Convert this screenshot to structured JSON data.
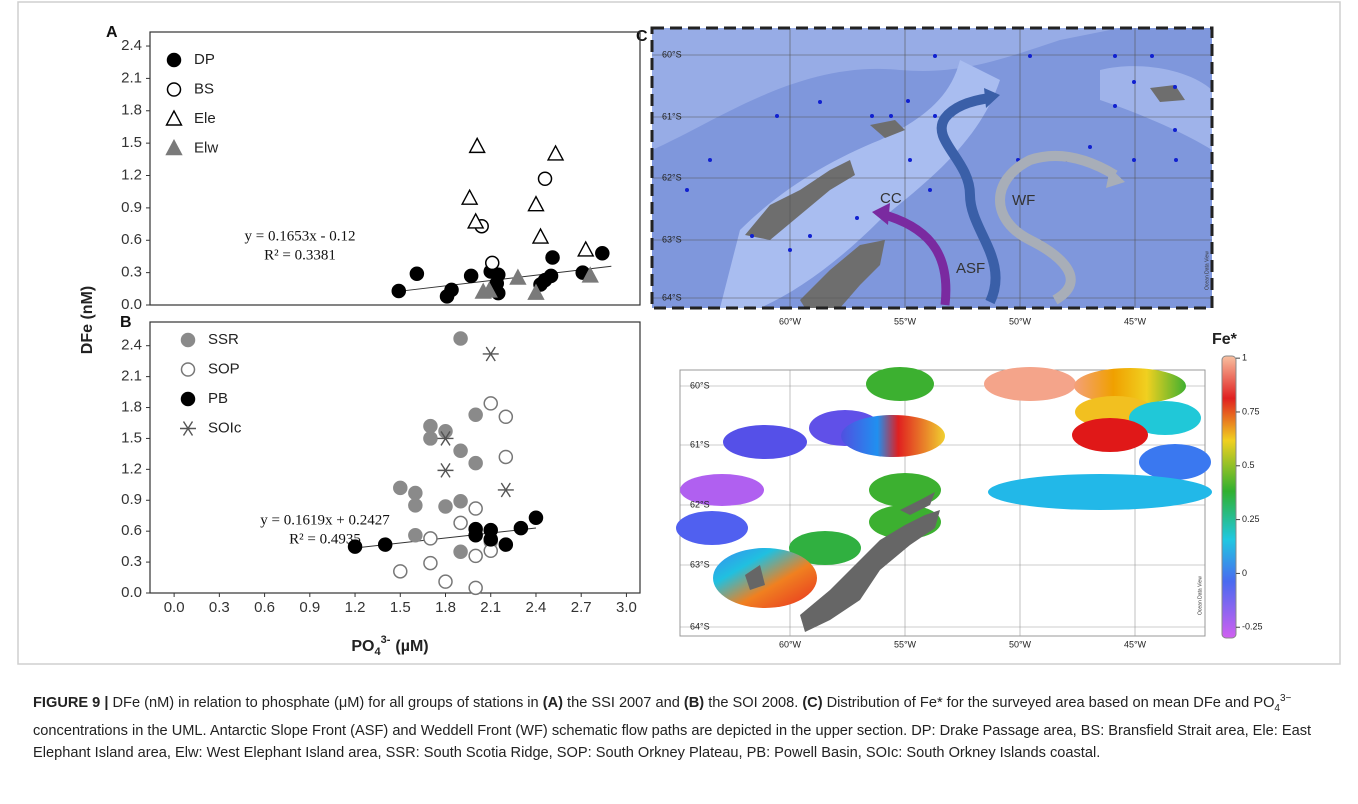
{
  "chart_data": [
    {
      "type": "scatter",
      "panel_label": "A",
      "ylabel": "DFe (nM)",
      "xlim": [
        -0.16,
        3.09
      ],
      "ylim": [
        0,
        2.53
      ],
      "yticks": [
        {
          "value": 0,
          "label": "0.0"
        },
        0.3,
        0.6,
        0.9,
        1.2,
        1.5,
        1.8,
        2.1,
        2.4
      ],
      "series": [
        {
          "name": "DP",
          "marker": "circle",
          "filled": true,
          "color": "#000000",
          "x": [
            1.49,
            1.61,
            1.81,
            1.84,
            1.97,
            2.1,
            2.14,
            2.15,
            2.15,
            2.43,
            2.46,
            2.5,
            2.51,
            2.71,
            2.84
          ],
          "values": [
            0.13,
            0.29,
            0.08,
            0.14,
            0.27,
            0.31,
            0.2,
            0.11,
            0.28,
            0.19,
            0.23,
            0.27,
            0.44,
            0.3,
            0.48
          ]
        },
        {
          "name": "BS",
          "marker": "circle",
          "filled": false,
          "color": "#000000",
          "x": [
            2.04,
            2.11,
            2.46
          ],
          "values": [
            0.73,
            0.39,
            1.17
          ]
        },
        {
          "name": "Ele",
          "marker": "triangle",
          "filled": false,
          "color": "#000000",
          "x": [
            2.01,
            1.96,
            2.0,
            2.4,
            2.43,
            2.53,
            2.73
          ],
          "values": [
            1.47,
            0.99,
            0.77,
            0.93,
            0.63,
            1.4,
            0.51
          ]
        },
        {
          "name": "Elw",
          "marker": "triangle",
          "filled": true,
          "color": "#7a7a7a",
          "x": [
            2.05,
            2.09,
            2.28,
            2.4,
            2.76
          ],
          "values": [
            0.12,
            0.13,
            0.25,
            0.11,
            0.27
          ]
        }
      ],
      "equation": "y = 0.1653x - 0.12",
      "r_squared": "R² = 0.3381",
      "trendline": {
        "x": [
          1.5,
          2.9
        ],
        "values": [
          0.128,
          0.359
        ]
      }
    },
    {
      "type": "scatter",
      "panel_label": "B",
      "xlabel": {
        "text": "PO",
        "sub": "4",
        "sup": "3-",
        "unit": "(µM)"
      },
      "xlim": [
        -0.16,
        3.09
      ],
      "ylim": [
        0,
        2.63
      ],
      "xticks": [
        {
          "value": 0,
          "label": "0.0"
        },
        0.3,
        0.6,
        0.9,
        1.2,
        1.5,
        1.8,
        2.1,
        2.4,
        2.7,
        {
          "value": 3,
          "label": "3.0"
        }
      ],
      "yticks": [
        {
          "value": 0,
          "label": "0.0"
        },
        0.3,
        0.6,
        0.9,
        1.2,
        1.5,
        1.8,
        2.1,
        2.4
      ],
      "series": [
        {
          "name": "SSR",
          "marker": "circle",
          "filled": true,
          "color": "#8a8a8a",
          "x": [
            1.5,
            1.6,
            1.6,
            1.6,
            1.7,
            1.7,
            1.8,
            1.8,
            1.9,
            1.9,
            1.9,
            1.9,
            2.0,
            2.0,
            2.1
          ],
          "values": [
            1.02,
            0.97,
            0.85,
            0.56,
            1.62,
            1.5,
            1.57,
            0.84,
            2.47,
            1.38,
            0.89,
            0.4,
            1.73,
            1.26,
            0.5
          ]
        },
        {
          "name": "SOP",
          "marker": "circle",
          "filled": false,
          "color": "#777777",
          "x": [
            1.5,
            1.7,
            1.7,
            1.8,
            1.9,
            2.0,
            2.0,
            2.0,
            2.1,
            2.1,
            2.2,
            2.2
          ],
          "values": [
            0.21,
            0.53,
            0.29,
            0.11,
            0.68,
            0.82,
            0.36,
            0.05,
            1.84,
            0.41,
            1.71,
            1.32
          ]
        },
        {
          "name": "PB",
          "marker": "circle",
          "filled": true,
          "color": "#000000",
          "x": [
            1.2,
            1.4,
            2.0,
            2.0,
            2.1,
            2.1,
            2.2,
            2.3,
            2.4
          ],
          "values": [
            0.45,
            0.47,
            0.56,
            0.62,
            0.52,
            0.61,
            0.47,
            0.63,
            0.73
          ]
        },
        {
          "name": "SOIc",
          "marker": "star",
          "filled": false,
          "color": "#555555",
          "x": [
            1.8,
            1.8,
            2.1,
            2.2
          ],
          "values": [
            1.5,
            1.19,
            2.32,
            1.0
          ]
        }
      ],
      "equation": "y = 0.1619x + 0.2427",
      "r_squared": "R² = 0.4935",
      "trendline": {
        "x": [
          1.2,
          2.4
        ],
        "values": [
          0.437,
          0.631
        ]
      }
    }
  ],
  "map": {
    "panel_label": "C",
    "top": {
      "labels": [
        "CC",
        "WF",
        "ASF"
      ],
      "lat_labels": [
        "60°S",
        "61°S",
        "62°S",
        "63°S",
        "64°S"
      ],
      "lon_labels": [
        "60°W",
        "55°W",
        "50°W",
        "45°W"
      ],
      "watermark": "Ocean Data View"
    },
    "bottom": {
      "title": "Fe*",
      "lat_labels": [
        "60°S",
        "61°S",
        "62°S",
        "63°S",
        "64°S"
      ],
      "lon_labels": [
        "60°W",
        "55°W",
        "50°W",
        "45°W"
      ],
      "watermark": "Ocean Data View",
      "colorbar": {
        "range": [
          -0.3,
          1.01
        ],
        "ticks": [
          1,
          0.75,
          0.5,
          0.25,
          0,
          -0.25
        ]
      }
    }
  },
  "caption": [
    {
      "text": "FIGURE 9 |",
      "style": "bold"
    },
    {
      "text": " DFe (nM) in relation to phosphate (μM) for all groups of stations in ",
      "style": "normal"
    },
    {
      "text": "(A)",
      "style": "bold"
    },
    {
      "text": " the SSI 2007 and ",
      "style": "normal"
    },
    {
      "text": "(B)",
      "style": "bold"
    },
    {
      "text": " the SOI 2008. ",
      "style": "normal"
    },
    {
      "text": "(C)",
      "style": "bold"
    },
    {
      "text": " Distribution of Fe* for the surveyed area based on mean DFe and PO",
      "style": "normal"
    },
    {
      "text": "4",
      "style": "sub"
    },
    {
      "text": "3−",
      "style": "sup"
    },
    {
      "text": " concentrations in the UML. Antarctic Slope Front (ASF) and Weddell Front (WF) schematic flow paths are depicted in the upper section. DP: Drake Passage area, BS: Bransfield Strait area, Ele: East Elephant Island area, Elw: West Elephant Island area, SSR: South Scotia Ridge, SOP: South Orkney Plateau, PB: Powell Basin, SOIc: South Orkney Islands coastal.",
      "style": "normal"
    }
  ]
}
